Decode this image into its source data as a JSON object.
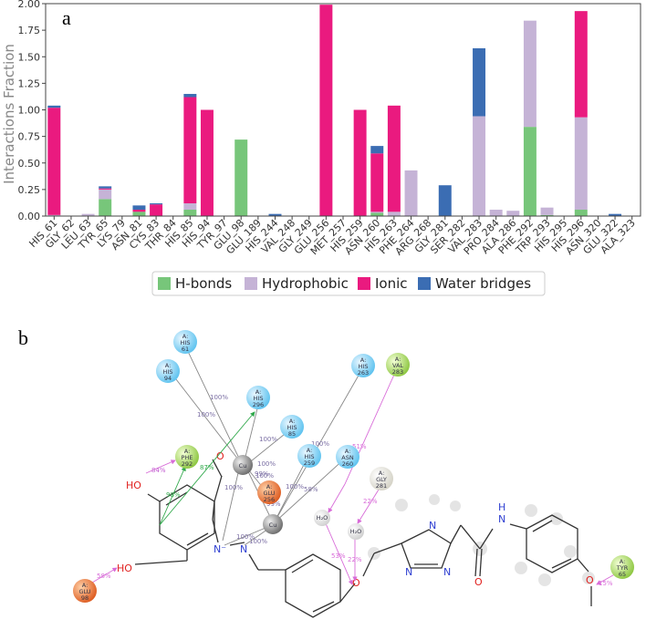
{
  "panel_a_label": "a",
  "panel_b_label": "b",
  "chart_data": {
    "type": "bar",
    "stacked": true,
    "title": "",
    "xlabel": "",
    "ylabel": "Interactions Fraction",
    "ylim": [
      0,
      2.0
    ],
    "yticks": [
      "0.00",
      "0.25",
      "0.50",
      "0.75",
      "1.00",
      "1.25",
      "1.50",
      "1.75",
      "2.00"
    ],
    "legend_position": "bottom",
    "categories": [
      "HIS_61",
      "GLY_62",
      "LEU_63",
      "TYR_65",
      "LYS_79",
      "ASN_81",
      "CYS_83",
      "THR_84",
      "HIS_85",
      "HIS_94",
      "TYR_97",
      "GLU_98",
      "GLU_189",
      "HIS_244",
      "VAL_248",
      "GLY_249",
      "GLU_256",
      "MET_257",
      "HIS_259",
      "ASN_260",
      "HIS_263",
      "PHE_264",
      "ARG_268",
      "GLY_281",
      "SER_282",
      "VAL_283",
      "PRO_284",
      "ALA_286",
      "PHE_292",
      "TRP_293",
      "HIS_295",
      "HIS_296",
      "ASN_320",
      "GLU_322",
      "ALA_323"
    ],
    "series": [
      {
        "name": "H-bonds",
        "color": "#77c67a",
        "values": [
          0,
          0,
          0,
          0.16,
          0,
          0.04,
          0,
          0,
          0.06,
          0,
          0,
          0.72,
          0,
          0,
          0,
          0,
          0,
          0,
          0,
          0.03,
          0,
          0,
          0,
          0,
          0,
          0,
          0,
          0,
          0.84,
          0.01,
          0,
          0.06,
          0,
          0,
          0
        ]
      },
      {
        "name": "Hydrophobic",
        "color": "#c5b3d6",
        "values": [
          0.01,
          0,
          0.02,
          0.09,
          0,
          0,
          0,
          0,
          0.06,
          0,
          0,
          0,
          0,
          0,
          0,
          0,
          0,
          0,
          0,
          0.01,
          0.04,
          0.43,
          0,
          0,
          0,
          0.94,
          0.06,
          0.05,
          1.0,
          0.07,
          0,
          0.87,
          0,
          0,
          0
        ]
      },
      {
        "name": "Ionic",
        "color": "#ea1a7f",
        "values": [
          1.01,
          0,
          0,
          0.01,
          0,
          0.02,
          0.11,
          0,
          1.0,
          1.0,
          0,
          0,
          0,
          0,
          0,
          0,
          1.99,
          0,
          1.0,
          0.55,
          1.0,
          0,
          0,
          0,
          0,
          0,
          0,
          0,
          0,
          0,
          0,
          1.0,
          0,
          0,
          0
        ]
      },
      {
        "name": "Water bridges",
        "color": "#3b6db3",
        "values": [
          0.02,
          0,
          0,
          0.02,
          0,
          0.04,
          0.01,
          0,
          0.03,
          0,
          0,
          0,
          0,
          0.02,
          0,
          0,
          0,
          0,
          0,
          0.07,
          0,
          0,
          0,
          0.29,
          0,
          0.64,
          0,
          0,
          0,
          0,
          0,
          0,
          0,
          0.02,
          0
        ]
      }
    ]
  },
  "diagram": {
    "nodes": [
      {
        "chain": "A:",
        "res": "HIS",
        "num": "61",
        "type": "his"
      },
      {
        "chain": "A:",
        "res": "HIS",
        "num": "94",
        "type": "his"
      },
      {
        "chain": "A:",
        "res": "HIS",
        "num": "296",
        "type": "his"
      },
      {
        "chain": "A:",
        "res": "HIS",
        "num": "85",
        "type": "his"
      },
      {
        "chain": "A:",
        "res": "HIS",
        "num": "263",
        "type": "his"
      },
      {
        "chain": "A:",
        "res": "VAL",
        "num": "283",
        "type": "hydrophobic"
      },
      {
        "chain": "A:",
        "res": "PHE",
        "num": "292",
        "type": "hydrophobic"
      },
      {
        "chain": "A:",
        "res": "HIS",
        "num": "259",
        "type": "his"
      },
      {
        "chain": "A:",
        "res": "ASN",
        "num": "260",
        "type": "his"
      },
      {
        "chain": "A:",
        "res": "GLU",
        "num": "256",
        "type": "negative"
      },
      {
        "chain": "A:",
        "res": "GLY",
        "num": "281",
        "type": "glycine"
      },
      {
        "chain": "A:",
        "res": "GLU",
        "num": "98",
        "type": "negative"
      },
      {
        "chain": "A:",
        "res": "TYR",
        "num": "65",
        "type": "hydrophobic"
      }
    ],
    "metals": [
      "Cu",
      "Cu"
    ],
    "waters": [
      "H₂O",
      "H₂O"
    ],
    "percentages": [
      "100%",
      "100%",
      "100%",
      "100%",
      "100%",
      "99%",
      "100%",
      "100%",
      "99%",
      "100%",
      "100%",
      "100%",
      "58%",
      "84%",
      "87%",
      "98%",
      "51%",
      "53%",
      "22%",
      "22%",
      "15%",
      "58%"
    ],
    "atoms": {
      "ho": "HO",
      "oh": "OH",
      "o1": "O",
      "o2": "O",
      "o3": "O",
      "o4": "O",
      "nminus": "N⁻",
      "n1": "N",
      "n2": "N",
      "n3": "N",
      "n4": "N",
      "nh": "N",
      "h": "H"
    }
  }
}
